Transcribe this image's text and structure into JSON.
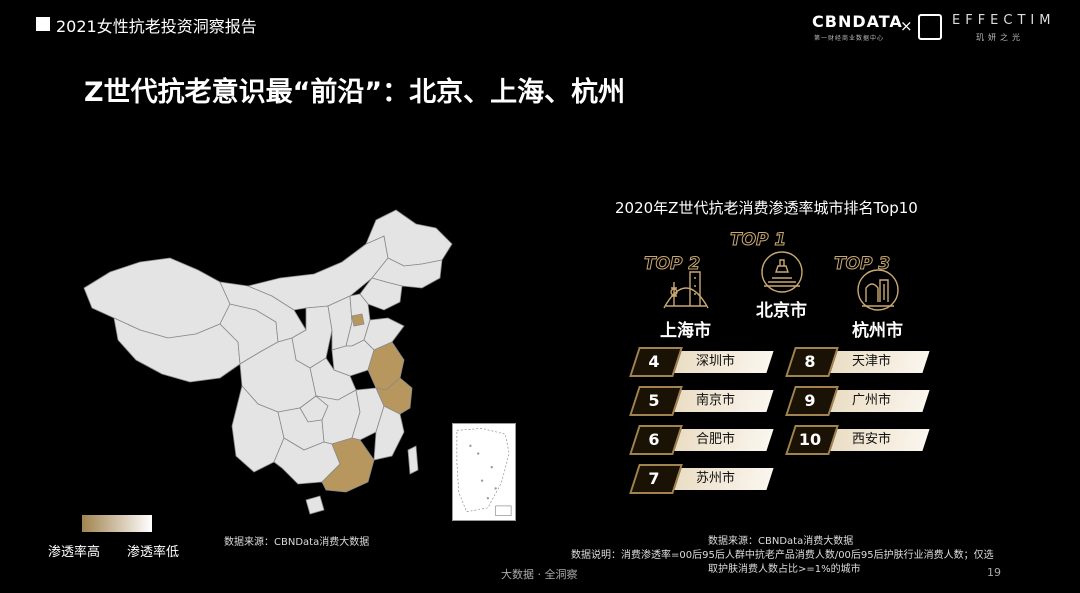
{
  "header": {
    "report_title": "2021女性抗老投资洞察报告"
  },
  "logos": {
    "cbndata": "CBNDATA",
    "cbndata_sub": "第一财经商业数据中心",
    "separator": "×",
    "effectim": "EFFECTIM",
    "effectim_sub": "玑妍之光"
  },
  "main_title": "Z世代抗老意识最“前沿”：北京、上海、杭州",
  "map": {
    "legend_high": "渗透率高",
    "legend_low": "渗透率低",
    "legend_high_color": "#a1834f",
    "legend_low_color": "#ffffff",
    "highlight_color": "#b8975f",
    "base_color": "#e4e4e4",
    "source": "数据来源：CBNData消费大数据"
  },
  "ranking": {
    "title": "2020年Z世代抗老消费渗透率城市排名Top10",
    "podium": [
      {
        "label": "TOP 1",
        "city": "北京市"
      },
      {
        "label": "TOP 2",
        "city": "上海市"
      },
      {
        "label": "TOP 3",
        "city": "杭州市"
      }
    ],
    "list": [
      {
        "rank": "4",
        "city": "深圳市"
      },
      {
        "rank": "5",
        "city": "南京市"
      },
      {
        "rank": "6",
        "city": "合肥市"
      },
      {
        "rank": "7",
        "city": "苏州市"
      },
      {
        "rank": "8",
        "city": "天津市"
      },
      {
        "rank": "9",
        "city": "广州市"
      },
      {
        "rank": "10",
        "city": "西安市"
      }
    ],
    "source": "数据来源：CBNData消费大数据",
    "note_line1": "数据说明：消费渗透率=00后95后人群中抗老产品消费人数/00后95后护肤行业消费人数；仅选",
    "note_line2": "取护肤消费人数占比>=1%的城市"
  },
  "footer": {
    "tagline": "大数据 · 全洞察",
    "page": "19"
  }
}
